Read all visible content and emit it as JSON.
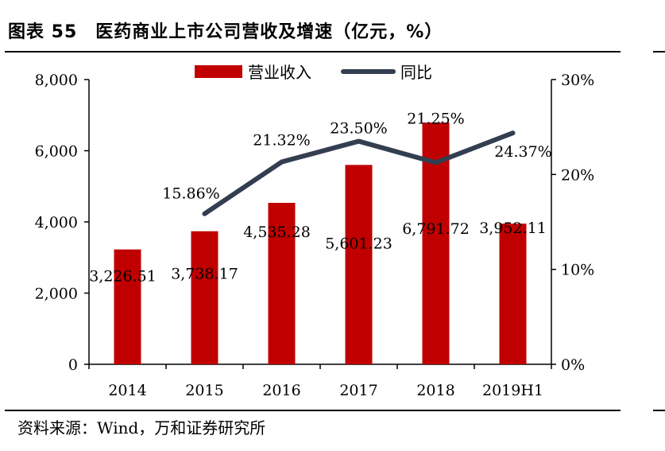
{
  "header": {
    "title": "图表 55　医药商业上市公司营收及增速（亿元，%）"
  },
  "footer": {
    "source": "资料来源：Wind，万和证券研究所"
  },
  "colors": {
    "bar": "#c00000",
    "line": "#333f50"
  },
  "chart_data": {
    "type": "bar+line",
    "categories": [
      "2014",
      "2015",
      "2016",
      "2017",
      "2018",
      "2019H1"
    ],
    "series": [
      {
        "name": "营业收入",
        "type": "bar",
        "axis": "left",
        "values": [
          3226.51,
          3738.17,
          4535.28,
          5601.23,
          6791.72,
          3952.11
        ],
        "labels": [
          "3,226.51",
          "3,738.17",
          "4,535.28",
          "5,601.23",
          "6,791.72",
          "3,952.11"
        ]
      },
      {
        "name": "同比",
        "type": "line",
        "axis": "right",
        "values": [
          null,
          15.86,
          21.32,
          23.5,
          21.25,
          24.37
        ],
        "labels": [
          "",
          "15.86%",
          "21.32%",
          "23.50%",
          "21.25%",
          "24.37%"
        ]
      }
    ],
    "y_left": {
      "min": 0,
      "max": 8000,
      "ticks": [
        0,
        2000,
        4000,
        6000,
        8000
      ],
      "tick_labels": [
        "0",
        "2,000",
        "4,000",
        "6,000",
        "8,000"
      ]
    },
    "y_right": {
      "min": 0,
      "max": 30,
      "ticks": [
        0,
        10,
        20,
        30
      ],
      "tick_labels": [
        "0%",
        "10%",
        "20%",
        "30%"
      ]
    },
    "legend": {
      "position": "top-center"
    },
    "grid": false
  }
}
